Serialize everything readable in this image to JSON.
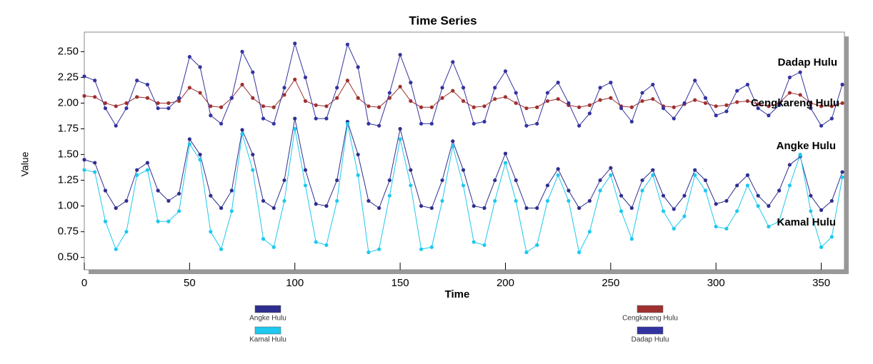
{
  "chart_data": {
    "type": "line",
    "title": "Time Series",
    "x_label": "Time",
    "y_label": "Value",
    "x": [
      0,
      5,
      10,
      15,
      20,
      25,
      30,
      35,
      40,
      45,
      50,
      55,
      60,
      65,
      70,
      75,
      80,
      85,
      90,
      95,
      100,
      105,
      110,
      115,
      120,
      125,
      130,
      135,
      140,
      145,
      150,
      155,
      160,
      165,
      170,
      175,
      180,
      185,
      190,
      195,
      200,
      205,
      210,
      215,
      220,
      225,
      230,
      235,
      240,
      245,
      250,
      255,
      260,
      265,
      270,
      275,
      280,
      285,
      290,
      295,
      300,
      305,
      310,
      315,
      320,
      325,
      330,
      335,
      340,
      345,
      350,
      355,
      360
    ],
    "series": [
      {
        "name": "Angke Hulu",
        "color": "#2e2e8f",
        "values": [
          1.45,
          1.42,
          1.15,
          0.98,
          1.05,
          1.35,
          1.42,
          1.15,
          1.05,
          1.12,
          1.65,
          1.5,
          1.1,
          0.98,
          1.15,
          1.74,
          1.5,
          1.05,
          0.98,
          1.25,
          1.85,
          1.35,
          1.02,
          1.0,
          1.25,
          1.82,
          1.5,
          1.05,
          0.98,
          1.25,
          1.75,
          1.35,
          1.0,
          0.98,
          1.25,
          1.63,
          1.35,
          1.0,
          0.98,
          1.25,
          1.51,
          1.25,
          0.98,
          0.98,
          1.2,
          1.36,
          1.15,
          0.98,
          1.05,
          1.25,
          1.37,
          1.1,
          0.98,
          1.25,
          1.35,
          1.1,
          0.97,
          1.1,
          1.35,
          1.25,
          1.02,
          1.05,
          1.2,
          1.3,
          1.1,
          1.0,
          1.15,
          1.4,
          1.48,
          1.1,
          0.96,
          1.05,
          1.33
        ]
      },
      {
        "name": "Kamal Hulu",
        "color": "#1ec8ee",
        "values": [
          1.35,
          1.33,
          0.85,
          0.58,
          0.75,
          1.3,
          1.35,
          0.85,
          0.85,
          0.95,
          1.6,
          1.45,
          0.75,
          0.58,
          0.95,
          1.7,
          1.35,
          0.68,
          0.6,
          1.05,
          1.75,
          1.2,
          0.65,
          0.62,
          1.05,
          1.8,
          1.3,
          0.55,
          0.58,
          1.1,
          1.65,
          1.2,
          0.58,
          0.6,
          1.05,
          1.58,
          1.2,
          0.65,
          0.62,
          1.05,
          1.42,
          1.05,
          0.55,
          0.62,
          1.05,
          1.3,
          1.05,
          0.55,
          0.75,
          1.15,
          1.3,
          0.95,
          0.68,
          1.15,
          1.3,
          0.95,
          0.78,
          0.9,
          1.3,
          1.15,
          0.8,
          0.78,
          0.95,
          1.2,
          1.0,
          0.8,
          0.85,
          1.2,
          1.5,
          0.95,
          0.6,
          0.7,
          1.28
        ]
      },
      {
        "name": "Cengkareng Hulu",
        "color": "#a03030",
        "values": [
          2.07,
          2.06,
          2.0,
          1.97,
          2.0,
          2.06,
          2.05,
          2.0,
          2.0,
          2.02,
          2.15,
          2.1,
          1.97,
          1.96,
          2.05,
          2.18,
          2.05,
          1.97,
          1.96,
          2.08,
          2.23,
          2.02,
          1.98,
          1.97,
          2.05,
          2.22,
          2.05,
          1.97,
          1.96,
          2.05,
          2.16,
          2.02,
          1.96,
          1.96,
          2.05,
          2.12,
          2.02,
          1.96,
          1.97,
          2.04,
          2.06,
          2.0,
          1.95,
          1.96,
          2.02,
          2.04,
          1.98,
          1.96,
          1.98,
          2.03,
          2.05,
          1.97,
          1.96,
          2.02,
          2.04,
          1.97,
          1.96,
          1.99,
          2.03,
          2.0,
          1.97,
          1.98,
          2.01,
          2.02,
          1.99,
          1.97,
          2.0,
          2.1,
          2.08,
          2.0,
          1.97,
          1.97,
          2.0
        ]
      },
      {
        "name": "Dadap Hulu",
        "color": "#3333a0",
        "values": [
          2.26,
          2.22,
          1.95,
          1.78,
          1.95,
          2.22,
          2.18,
          1.95,
          1.95,
          2.05,
          2.45,
          2.35,
          1.88,
          1.8,
          2.05,
          2.5,
          2.3,
          1.85,
          1.8,
          2.15,
          2.58,
          2.25,
          1.85,
          1.85,
          2.15,
          2.57,
          2.35,
          1.8,
          1.78,
          2.1,
          2.47,
          2.2,
          1.8,
          1.8,
          2.15,
          2.4,
          2.15,
          1.8,
          1.82,
          2.15,
          2.31,
          2.1,
          1.78,
          1.8,
          2.1,
          2.2,
          2.0,
          1.78,
          1.9,
          2.15,
          2.2,
          1.95,
          1.82,
          2.1,
          2.18,
          1.95,
          1.85,
          2.0,
          2.22,
          2.05,
          1.88,
          1.92,
          2.12,
          2.18,
          1.95,
          1.88,
          1.98,
          2.25,
          2.3,
          1.95,
          1.78,
          1.85,
          2.18
        ]
      }
    ],
    "xlim": [
      0,
      361
    ],
    "xticks": [
      0,
      50,
      100,
      150,
      200,
      250,
      300,
      350
    ],
    "ylim": [
      0.38,
      2.69
    ],
    "yticks": [
      {
        "value": 0.5,
        "label": "0.50"
      },
      {
        "value": 0.75,
        "label": "0.75"
      },
      {
        "value": 1.0,
        "label": "1.00"
      },
      {
        "value": 1.25,
        "label": "1.25"
      },
      {
        "value": 1.5,
        "label": "1.50"
      },
      {
        "value": 1.75,
        "label": "1.75"
      },
      {
        "value": 2.0,
        "label": "2.00"
      },
      {
        "value": 2.25,
        "label": "2.25"
      },
      {
        "value": 2.5,
        "label": "2.50"
      }
    ]
  }
}
